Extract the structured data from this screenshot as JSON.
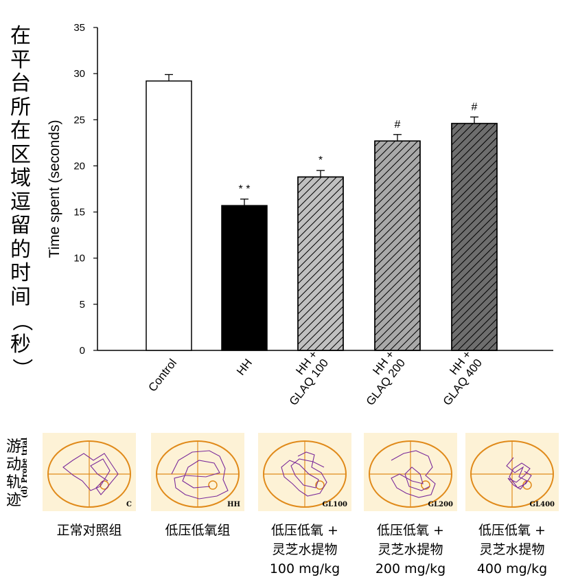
{
  "page_title_vertical": "在平台所在区域逗留的时间（秒）",
  "swim_label": "游动轨迹",
  "probe_label": "(d) Probe trial",
  "colors": {
    "axis": "#000000",
    "control_fill": "#ffffff",
    "hh_fill": "#000000",
    "glaq100_fill": "#c0c0c0",
    "glaq200_fill": "#a9a9a9",
    "glaq400_fill": "#6e6e6e",
    "track_color": "#7a2a9a",
    "pool_color": "#e08a1a",
    "panel_bg": "#fdf2d6"
  },
  "chart_data": {
    "type": "bar",
    "ylabel": "Time spent (seconds)",
    "ylim": [
      0,
      35
    ],
    "yticks": [
      0,
      5,
      10,
      15,
      20,
      25,
      30,
      35
    ],
    "categories": [
      {
        "label_lines": [
          "Control"
        ],
        "value": 29.2,
        "error": 0.7,
        "mark": "",
        "pattern": "none",
        "fill": "#ffffff"
      },
      {
        "label_lines": [
          "HH"
        ],
        "value": 15.7,
        "error": 0.7,
        "mark": "* *",
        "pattern": "none",
        "fill": "#000000"
      },
      {
        "label_lines": [
          "HH +",
          "GLAQ 100"
        ],
        "value": 18.8,
        "error": 0.7,
        "mark": "*",
        "pattern": "hatch",
        "fill": "#c0c0c0"
      },
      {
        "label_lines": [
          "HH +",
          "GLAQ 200"
        ],
        "value": 22.7,
        "error": 0.7,
        "mark": "#",
        "pattern": "hatch",
        "fill": "#a9a9a9"
      },
      {
        "label_lines": [
          "HH +",
          "GLAQ 400"
        ],
        "value": 24.6,
        "error": 0.7,
        "mark": "#",
        "pattern": "hatch",
        "fill": "#6e6e6e"
      }
    ]
  },
  "panels": [
    {
      "tag": "C",
      "caption": [
        "正常对照组"
      ]
    },
    {
      "tag": "HH",
      "caption": [
        "低压低氧组"
      ]
    },
    {
      "tag": "GL100",
      "caption": [
        "低压低氧 +",
        "灵芝水提物",
        "100 mg/kg"
      ]
    },
    {
      "tag": "GL200",
      "caption": [
        "低压低氧 +",
        "灵芝水提物",
        "200 mg/kg"
      ]
    },
    {
      "tag": "GL400",
      "caption": [
        "低压低氧 +",
        "灵芝水提物",
        "400 mg/kg"
      ]
    }
  ]
}
